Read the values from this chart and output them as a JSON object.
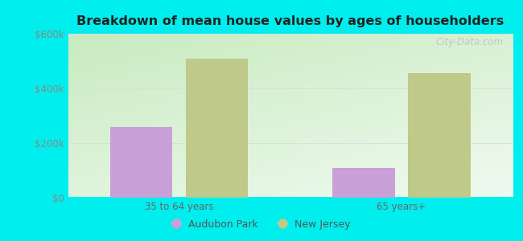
{
  "title": "Breakdown of mean house values by ages of householders",
  "categories": [
    "35 to 64 years",
    "65 years+"
  ],
  "series": {
    "Audubon Park": [
      260000,
      110000
    ],
    "New Jersey": [
      510000,
      455000
    ]
  },
  "bar_colors": {
    "Audubon Park": "#c9a0d8",
    "New Jersey": "#bec98a"
  },
  "ylim": [
    0,
    600000
  ],
  "yticks": [
    0,
    200000,
    400000,
    600000
  ],
  "ytick_labels": [
    "$0",
    "$200k",
    "$400k",
    "$600k"
  ],
  "background_color": "#00eeee",
  "plot_bg_grad_topleft": "#c8ebc0",
  "plot_bg_grad_bottomright": "#f0f8f0",
  "watermark": "City-Data.com",
  "bar_width": 0.28,
  "legend_entries": [
    "Audubon Park",
    "New Jersey"
  ]
}
